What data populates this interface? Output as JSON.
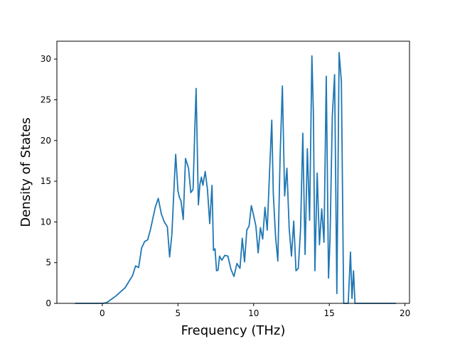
{
  "chart_data": {
    "type": "line",
    "title": "",
    "xlabel": "Frequency (THz)",
    "ylabel": "Density of States",
    "xlim": [
      -3.0,
      20.3
    ],
    "ylim": [
      0,
      32.2
    ],
    "xticks": [
      0,
      5,
      10,
      15,
      20
    ],
    "xtick_labels": [
      "0",
      "5",
      "10",
      "15",
      "20"
    ],
    "yticks": [
      0,
      5,
      10,
      15,
      20,
      25,
      30
    ],
    "ytick_labels": [
      "0",
      "5",
      "10",
      "15",
      "20",
      "25",
      "30"
    ],
    "grid": false,
    "legend": "none",
    "series": [
      {
        "color": "#1f77b4",
        "x": [
          -1.8,
          0.0,
          0.3,
          0.6,
          0.9,
          1.2,
          1.5,
          1.8,
          2.0,
          2.2,
          2.4,
          2.6,
          2.8,
          3.0,
          3.2,
          3.35,
          3.5,
          3.7,
          3.9,
          4.1,
          4.3,
          4.45,
          4.6,
          4.75,
          4.85,
          5.0,
          5.1,
          5.2,
          5.35,
          5.5,
          5.7,
          5.85,
          6.0,
          6.1,
          6.2,
          6.35,
          6.45,
          6.55,
          6.65,
          6.8,
          6.95,
          7.1,
          7.25,
          7.35,
          7.45,
          7.55,
          7.65,
          7.75,
          7.9,
          8.1,
          8.3,
          8.5,
          8.7,
          8.9,
          9.1,
          9.25,
          9.4,
          9.55,
          9.7,
          9.85,
          10.0,
          10.15,
          10.3,
          10.45,
          10.6,
          10.75,
          10.9,
          11.05,
          11.2,
          11.3,
          11.45,
          11.6,
          11.75,
          11.9,
          12.05,
          12.2,
          12.35,
          12.5,
          12.65,
          12.8,
          12.95,
          13.1,
          13.25,
          13.4,
          13.55,
          13.7,
          13.85,
          13.95,
          14.05,
          14.2,
          14.35,
          14.5,
          14.65,
          14.8,
          14.95,
          15.05,
          15.2,
          15.35,
          15.5,
          15.65,
          15.8,
          15.95,
          16.1,
          16.25,
          16.4,
          16.5,
          16.6,
          16.7,
          16.8,
          17.5,
          19.4
        ],
        "y": [
          0,
          0,
          0.1,
          0.5,
          0.9,
          1.4,
          1.9,
          2.8,
          3.4,
          4.6,
          4.4,
          6.8,
          7.6,
          7.8,
          9.2,
          10.5,
          11.8,
          12.9,
          11.0,
          10.0,
          9.4,
          5.7,
          8.5,
          14.6,
          18.3,
          13.8,
          13.0,
          12.6,
          10.3,
          17.8,
          16.6,
          13.6,
          14.0,
          20.5,
          26.4,
          12.1,
          14.6,
          15.5,
          14.5,
          16.2,
          14.0,
          9.8,
          14.5,
          6.5,
          6.7,
          4.0,
          4.1,
          5.8,
          5.3,
          5.9,
          5.8,
          4.2,
          3.3,
          4.9,
          4.3,
          8.0,
          5.1,
          9.0,
          9.5,
          12.0,
          10.8,
          9.5,
          6.2,
          9.3,
          7.9,
          11.8,
          9.0,
          16.0,
          22.5,
          13.5,
          8.2,
          5.2,
          18.0,
          26.7,
          13.2,
          16.6,
          9.2,
          5.8,
          10.1,
          4.0,
          4.3,
          9.0,
          20.9,
          6.0,
          19.0,
          10.2,
          30.4,
          23.4,
          4.0,
          16.0,
          7.2,
          11.6,
          7.5,
          27.9,
          3.1,
          8.0,
          23.0,
          28.1,
          1.2,
          30.8,
          27.2,
          0,
          0,
          0,
          6.3,
          0.6,
          4.0,
          0,
          0,
          0,
          0
        ]
      }
    ]
  }
}
